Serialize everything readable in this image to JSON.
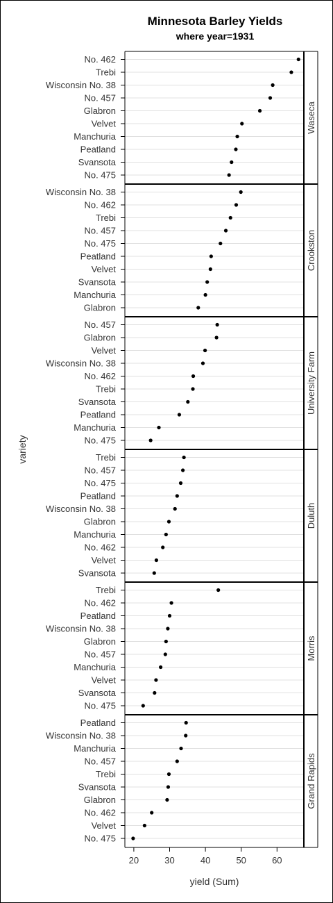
{
  "chart_data": {
    "type": "scatter",
    "title": "Minnesota Barley Yields",
    "subtitle": "where year=1931",
    "xlabel": "yield (Sum)",
    "ylabel": "variety",
    "xlim": [
      17.5,
      67.5
    ],
    "xticks": [
      20,
      30,
      40,
      50,
      60
    ],
    "grid": true,
    "marker_color": "#000000",
    "grid_color": "#e0e0e0",
    "panels": [
      {
        "site": "Waseca",
        "varieties": [
          "No. 462",
          "Trebi",
          "Wisconsin No. 38",
          "No. 457",
          "Glabron",
          "Velvet",
          "Manchuria",
          "Peatland",
          "Svansota",
          "No. 475"
        ],
        "values": [
          66.0,
          64.0,
          58.8,
          58.1,
          55.2,
          50.2,
          48.9,
          48.5,
          47.3,
          46.6
        ]
      },
      {
        "site": "Crookston",
        "varieties": [
          "Wisconsin No. 38",
          "No. 462",
          "Trebi",
          "No. 457",
          "No. 475",
          "Peatland",
          "Velvet",
          "Svansota",
          "Manchuria",
          "Glabron"
        ],
        "values": [
          49.9,
          48.6,
          47.0,
          45.7,
          44.2,
          41.6,
          41.4,
          40.5,
          40.0,
          38.0
        ]
      },
      {
        "site": "University Farm",
        "varieties": [
          "No. 457",
          "Glabron",
          "Velvet",
          "Wisconsin No. 38",
          "No. 462",
          "Trebi",
          "Svansota",
          "Peatland",
          "Manchuria",
          "No. 475"
        ],
        "values": [
          43.3,
          43.1,
          39.9,
          39.3,
          36.6,
          36.5,
          35.1,
          32.7,
          27.0,
          24.7
        ]
      },
      {
        "site": "Duluth",
        "varieties": [
          "Trebi",
          "No. 457",
          "No. 475",
          "Peatland",
          "Wisconsin No. 38",
          "Glabron",
          "Manchuria",
          "No. 462",
          "Velvet",
          "Svansota"
        ],
        "values": [
          34.0,
          33.7,
          33.1,
          32.1,
          31.5,
          29.8,
          29.0,
          28.1,
          26.3,
          25.7
        ]
      },
      {
        "site": "Morris",
        "varieties": [
          "Trebi",
          "No. 462",
          "Peatland",
          "Wisconsin No. 38",
          "Glabron",
          "No. 457",
          "Manchuria",
          "Velvet",
          "Svansota",
          "No. 475"
        ],
        "values": [
          43.6,
          30.5,
          30.0,
          29.5,
          29.0,
          28.8,
          27.5,
          26.2,
          25.8,
          22.6
        ]
      },
      {
        "site": "Grand Rapids",
        "varieties": [
          "Peatland",
          "Wisconsin No. 38",
          "Manchuria",
          "No. 457",
          "Trebi",
          "Svansota",
          "Glabron",
          "No. 462",
          "Velvet",
          "No. 475"
        ],
        "values": [
          34.6,
          34.5,
          33.2,
          32.1,
          29.8,
          29.6,
          29.3,
          25.0,
          23.0,
          19.8
        ]
      }
    ]
  }
}
